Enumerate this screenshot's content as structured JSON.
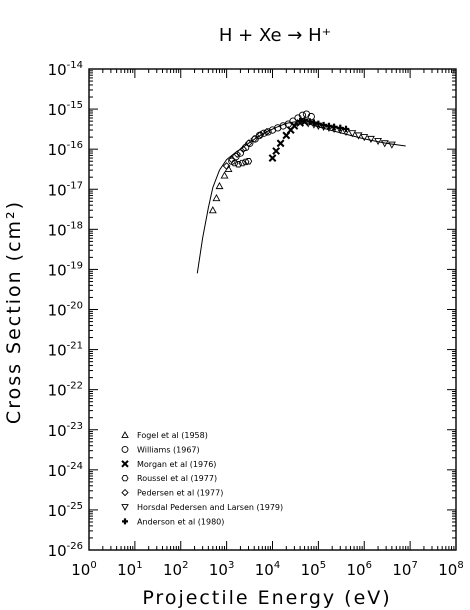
{
  "chart_data": {
    "type": "scatter",
    "title": "H + Xe → H⁺",
    "xlabel": "Projectile Energy (eV)",
    "ylabel": "Cross Section (cm²)",
    "x_scale": "log",
    "y_scale": "log",
    "xlim": [
      1,
      100000000
    ],
    "ylim": [
      1e-26,
      1e-14
    ],
    "x_ticks": [
      {
        "base": "10",
        "exp": "0",
        "value": 1
      },
      {
        "base": "10",
        "exp": "1",
        "value": 10
      },
      {
        "base": "10",
        "exp": "2",
        "value": 100
      },
      {
        "base": "10",
        "exp": "3",
        "value": 1000
      },
      {
        "base": "10",
        "exp": "4",
        "value": 10000
      },
      {
        "base": "10",
        "exp": "5",
        "value": 100000
      },
      {
        "base": "10",
        "exp": "6",
        "value": 1000000
      },
      {
        "base": "10",
        "exp": "7",
        "value": 10000000
      },
      {
        "base": "10",
        "exp": "8",
        "value": 100000000
      }
    ],
    "y_ticks": [
      {
        "base": "10",
        "exp": "-14",
        "value": 1e-14
      },
      {
        "base": "10",
        "exp": "-15",
        "value": 1e-15
      },
      {
        "base": "10",
        "exp": "-16",
        "value": 1e-16
      },
      {
        "base": "10",
        "exp": "-17",
        "value": 1e-17
      },
      {
        "base": "10",
        "exp": "-18",
        "value": 1e-18
      },
      {
        "base": "10",
        "exp": "-19",
        "value": 1e-19
      },
      {
        "base": "10",
        "exp": "-20",
        "value": 1e-20
      },
      {
        "base": "10",
        "exp": "-21",
        "value": 1e-21
      },
      {
        "base": "10",
        "exp": "-22",
        "value": 1e-22
      },
      {
        "base": "10",
        "exp": "-23",
        "value": 1e-23
      },
      {
        "base": "10",
        "exp": "-24",
        "value": 1e-24
      },
      {
        "base": "10",
        "exp": "-25",
        "value": 1e-25
      },
      {
        "base": "10",
        "exp": "-26",
        "value": 1e-26
      }
    ],
    "grid": false,
    "legend_position": "bottom-left",
    "fit_curve": {
      "x": [
        230,
        300,
        400,
        500,
        700,
        1000,
        1500,
        2000,
        3000,
        5000,
        8000,
        12000,
        20000,
        30000,
        45000,
        60000,
        100000,
        200000,
        500000,
        1000000,
        3000000,
        8000000
      ],
      "y": [
        8e-20,
        6e-19,
        3.5e-18,
        1.1e-17,
        3e-17,
        5.5e-17,
        8e-17,
        1e-16,
        1.4e-16,
        2.1e-16,
        2.8e-16,
        3.5e-16,
        4.4e-16,
        4.8e-16,
        4.7e-16,
        4.3e-16,
        3.6e-16,
        2.9e-16,
        2.2e-16,
        1.8e-16,
        1.4e-16,
        1.2e-16
      ]
    },
    "series": [
      {
        "name": "Fogel et al (1958)",
        "marker": "triangle-up",
        "x": [
          500,
          600,
          700,
          900,
          1100
        ],
        "y": [
          3e-18,
          6e-18,
          1.2e-17,
          2.2e-17,
          3.2e-17
        ]
      },
      {
        "name": "Williams (1967)",
        "marker": "circle",
        "x": [
          1300,
          1600,
          2000,
          2600,
          3200,
          4200,
          5200,
          6500,
          8000,
          10000,
          13000,
          17000,
          22000,
          28000,
          36000,
          45000,
          55000,
          70000
        ],
        "y": [
          5e-17,
          6.5e-17,
          8e-17,
          1.1e-16,
          1.4e-16,
          1.8e-16,
          2.2e-16,
          2.5e-16,
          2.7e-16,
          3e-16,
          3.4e-16,
          3.8e-16,
          4.2e-16,
          5e-16,
          6e-16,
          7e-16,
          7.5e-16,
          6.5e-16
        ]
      },
      {
        "name": "Morgan et al (1976)",
        "marker": "x",
        "x": [
          10000,
          12000,
          15000,
          20000,
          25000,
          30000,
          40000,
          50000
        ],
        "y": [
          6e-17,
          9e-17,
          1.4e-16,
          2.2e-16,
          3e-16,
          3.8e-16,
          4.5e-16,
          4.8e-16
        ]
      },
      {
        "name": "Roussel et al (1977)",
        "marker": "hexagon",
        "x": [
          1500,
          1800,
          2200,
          2600,
          3000
        ],
        "y": [
          4.5e-17,
          4.2e-17,
          4.5e-17,
          4.8e-17,
          5e-17
        ]
      },
      {
        "name": "Pedersen et al (1977)",
        "marker": "diamond",
        "x": [
          1000,
          1300,
          1700,
          2300,
          3000,
          4000,
          5500,
          7500
        ],
        "y": [
          3.8e-17,
          5.5e-17,
          7.5e-17,
          1e-16,
          1.4e-16,
          1.8e-16,
          2.3e-16,
          2.7e-16
        ]
      },
      {
        "name": "Horsdal Pedersen and Larsen (1979)",
        "marker": "triangle-down",
        "x": [
          60000,
          80000,
          100000,
          130000,
          170000,
          220000,
          300000,
          400000,
          550000,
          750000,
          1000000,
          1400000,
          2000000,
          2800000,
          4000000
        ],
        "y": [
          4.4e-16,
          4.1e-16,
          3.8e-16,
          3.6e-16,
          3.4e-16,
          3.2e-16,
          3e-16,
          2.7e-16,
          2.5e-16,
          2.2e-16,
          2e-16,
          1.8e-16,
          1.6e-16,
          1.4e-16,
          1.3e-16
        ]
      },
      {
        "name": "Anderson et al (1980)",
        "marker": "plus",
        "x": [
          40000,
          50000,
          65000,
          80000,
          100000,
          130000,
          170000,
          220000,
          300000,
          400000
        ],
        "y": [
          5e-16,
          5.2e-16,
          4.9e-16,
          4.6e-16,
          4.3e-16,
          4e-16,
          3.8e-16,
          3.6e-16,
          3.4e-16,
          3.2e-16
        ]
      }
    ]
  }
}
